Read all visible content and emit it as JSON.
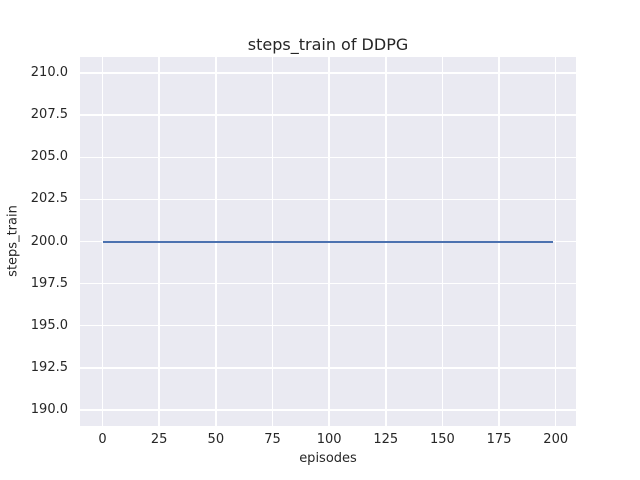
{
  "chart_data": {
    "type": "line",
    "title": "steps_train of DDPG",
    "xlabel": "episodes",
    "ylabel": "steps_train",
    "xlim": [
      -9.95,
      208.95
    ],
    "ylim": [
      189.05,
      210.95
    ],
    "grid": true,
    "legend_position": "none",
    "plot_bg_color": "#eaeaf2",
    "grid_color": "#ffffff",
    "text_color": "#262626",
    "xticks": {
      "values": [
        0,
        25,
        50,
        75,
        100,
        125,
        150,
        175,
        200
      ],
      "labels": [
        "0",
        "25",
        "50",
        "75",
        "100",
        "125",
        "150",
        "175",
        "200"
      ]
    },
    "yticks": {
      "values": [
        190.0,
        192.5,
        195.0,
        197.5,
        200.0,
        202.5,
        205.0,
        207.5,
        210.0
      ],
      "labels": [
        "190.0",
        "192.5",
        "195.0",
        "197.5",
        "200.0",
        "202.5",
        "205.0",
        "207.5",
        "210.0"
      ]
    },
    "series": [
      {
        "name": "steps_train",
        "color": "#4c72b0",
        "x": [
          0,
          199
        ],
        "y": [
          200,
          200
        ],
        "description": "constant value 200 for all episodes 0 through 199"
      }
    ]
  }
}
